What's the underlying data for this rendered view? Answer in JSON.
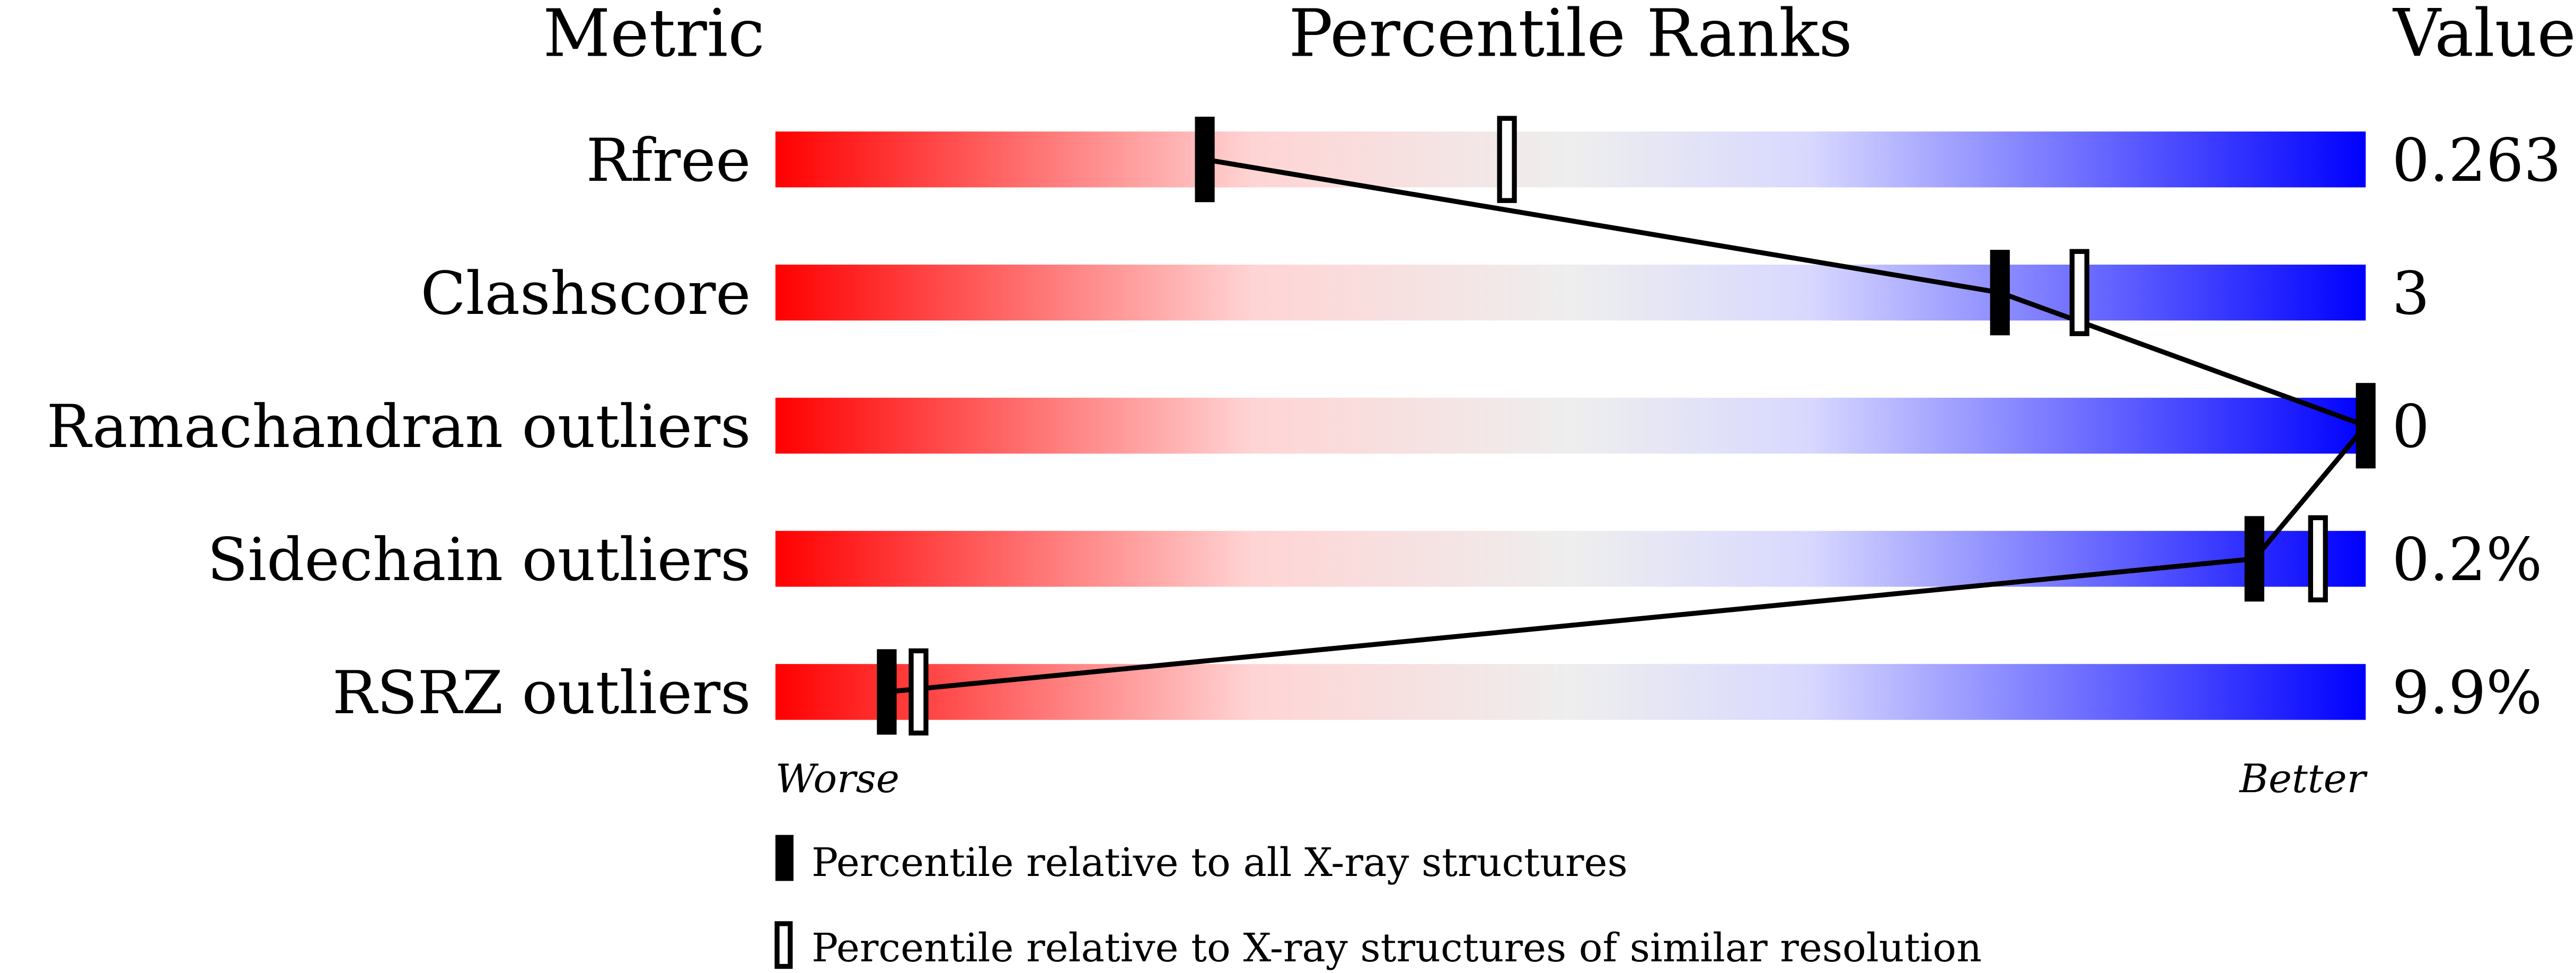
{
  "chart_data": {
    "type": "percentile-slider",
    "headers": {
      "metric": "Metric",
      "ranks": "Percentile Ranks",
      "value": "Value"
    },
    "xlim": [
      0,
      100
    ],
    "metrics": [
      {
        "name": "Rfree",
        "value": "0.263",
        "percentile_all": 27,
        "percentile_similar": 46
      },
      {
        "name": "Clashscore",
        "value": "3",
        "percentile_all": 77,
        "percentile_similar": 82
      },
      {
        "name": "Ramachandran outliers",
        "value": "0",
        "percentile_all": 100,
        "percentile_similar": 100
      },
      {
        "name": "Sidechain outliers",
        "value": "0.2%",
        "percentile_all": 93,
        "percentile_similar": 97
      },
      {
        "name": "RSRZ outliers",
        "value": "9.9%",
        "percentile_all": 7,
        "percentile_similar": 9
      }
    ],
    "axis": {
      "worse": "Worse",
      "better": "Better"
    },
    "legend": {
      "all": "Percentile relative to all X-ray structures",
      "similar": "Percentile relative to X-ray structures of similar resolution"
    },
    "colors": {
      "worse": "#ff0000",
      "mid": "#eeeeee",
      "better": "#0000ff"
    }
  }
}
